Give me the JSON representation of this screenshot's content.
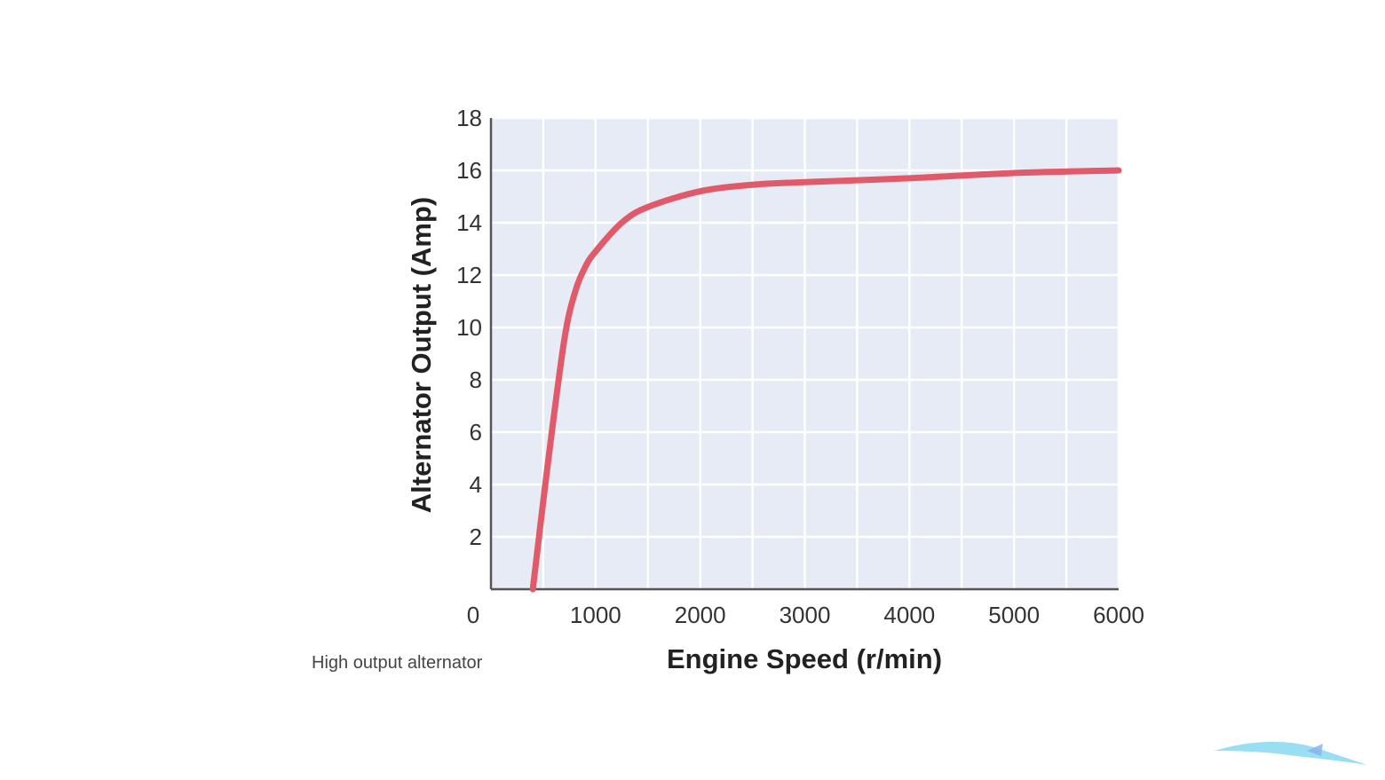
{
  "chart_data": {
    "type": "line",
    "title": "",
    "xlabel": "Engine Speed (r/min)",
    "ylabel": "Alternator Output (Amp)",
    "xlim": [
      0,
      6000
    ],
    "ylim": [
      0,
      18
    ],
    "xticks": [
      "0",
      "1000",
      "2000",
      "3000",
      "4000",
      "5000",
      "6000"
    ],
    "xtick_values": [
      0,
      1000,
      2000,
      3000,
      4000,
      5000,
      6000
    ],
    "yticks": [
      "2",
      "4",
      "6",
      "8",
      "10",
      "12",
      "14",
      "16",
      "18"
    ],
    "ytick_values": [
      2,
      4,
      6,
      8,
      10,
      12,
      14,
      16,
      18
    ],
    "grid": true,
    "grid_x_step": 500,
    "grid_y_step": 2,
    "annotation": "High output alternator",
    "series": [
      {
        "name": "High output alternator",
        "color": "#e05a6a",
        "x": [
          400,
          550,
          700,
          800,
          900,
          1000,
          1250,
          1500,
          2000,
          2500,
          3000,
          4000,
          5000,
          6000
        ],
        "y": [
          0,
          5,
          9.5,
          11.3,
          12.3,
          12.9,
          14.0,
          14.6,
          15.2,
          15.45,
          15.55,
          15.7,
          15.9,
          16.0
        ]
      }
    ],
    "colors": {
      "plot_bg": "#e6ebf6",
      "grid": "#ffffff",
      "axis": "#555555"
    }
  }
}
